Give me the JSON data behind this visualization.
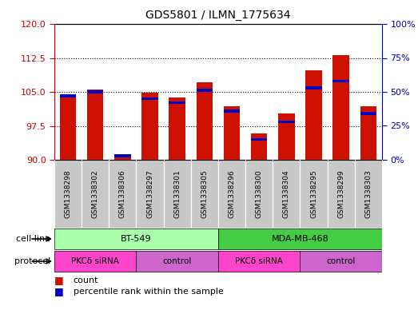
{
  "title": "GDS5801 / ILMN_1775634",
  "samples": [
    "GSM1338298",
    "GSM1338302",
    "GSM1338306",
    "GSM1338297",
    "GSM1338301",
    "GSM1338305",
    "GSM1338296",
    "GSM1338300",
    "GSM1338304",
    "GSM1338295",
    "GSM1338299",
    "GSM1338303"
  ],
  "count_values": [
    104.5,
    105.5,
    91.2,
    104.8,
    103.8,
    107.1,
    101.8,
    95.8,
    100.2,
    109.8,
    113.2,
    101.8
  ],
  "percentile_values": [
    47,
    50,
    3,
    45,
    42,
    51,
    36,
    15,
    28,
    53,
    58,
    34
  ],
  "ylim_left": [
    90,
    120
  ],
  "ylim_right": [
    0,
    100
  ],
  "yticks_left": [
    90,
    97.5,
    105,
    112.5,
    120
  ],
  "yticks_right": [
    0,
    25,
    50,
    75,
    100
  ],
  "cell_lines": [
    {
      "label": "BT-549",
      "span": [
        0,
        6
      ],
      "color": "#AAFFAA"
    },
    {
      "label": "MDA-MB-468",
      "span": [
        6,
        12
      ],
      "color": "#44CC44"
    }
  ],
  "protocols": [
    {
      "label": "PKCδ siRNA",
      "span": [
        0,
        3
      ],
      "color": "#FF44CC"
    },
    {
      "label": "control",
      "span": [
        3,
        6
      ],
      "color": "#CC66CC"
    },
    {
      "label": "PKCδ siRNA",
      "span": [
        6,
        9
      ],
      "color": "#FF44CC"
    },
    {
      "label": "control",
      "span": [
        9,
        12
      ],
      "color": "#CC66CC"
    }
  ],
  "bar_color": "#CC1100",
  "percentile_color": "#0000CC",
  "bar_width": 0.6,
  "left_axis_color": "#CC0000",
  "right_axis_color": "#0000BB",
  "plot_bg": "#FFFFFF",
  "tick_bg": "#C8C8C8",
  "spine_color": "#000000"
}
